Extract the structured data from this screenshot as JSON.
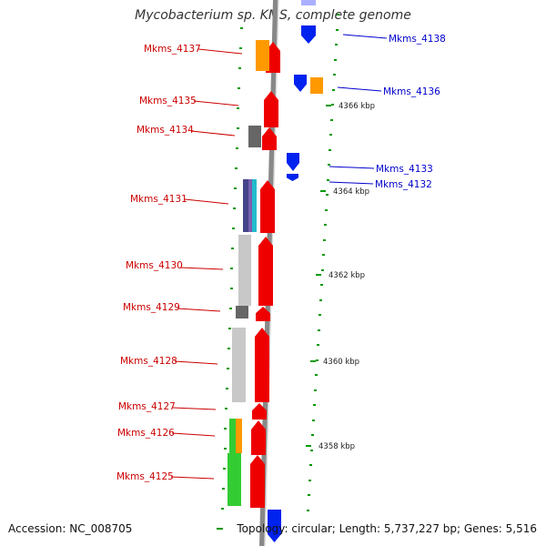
{
  "title": "Mycobacterium sp. KMS, complete genome",
  "footer": {
    "accession": "Accession: NC_008705",
    "topology": "Topology: circular; Length: 5,737,227 bp; Genes: 5,516"
  },
  "colors": {
    "forward_strand": "#ee0000",
    "reverse_strand": "#0022ee",
    "left_label": "#cc0000",
    "right_label": "#0000cc",
    "cog_orange": "#ff9900",
    "cog_gray": "#c8c8c8",
    "cog_dark": "#666666",
    "cog_green": "#33cc33",
    "tick_green": "#009900",
    "backbone": "#888888"
  },
  "scale_labels": [
    "4366 kbp",
    "4364 kbp",
    "4362 kbp",
    "4360 kbp",
    "4358 kbp"
  ],
  "left_genes": [
    "Mkms_4137",
    "Mkms_4135",
    "Mkms_4134",
    "Mkms_4131",
    "Mkms_4130",
    "Mkms_4129",
    "Mkms_4128",
    "Mkms_4127",
    "Mkms_4126",
    "Mkms_4125"
  ],
  "right_genes": [
    "Mkms_4138",
    "Mkms_4136",
    "Mkms_4133",
    "Mkms_4132"
  ]
}
